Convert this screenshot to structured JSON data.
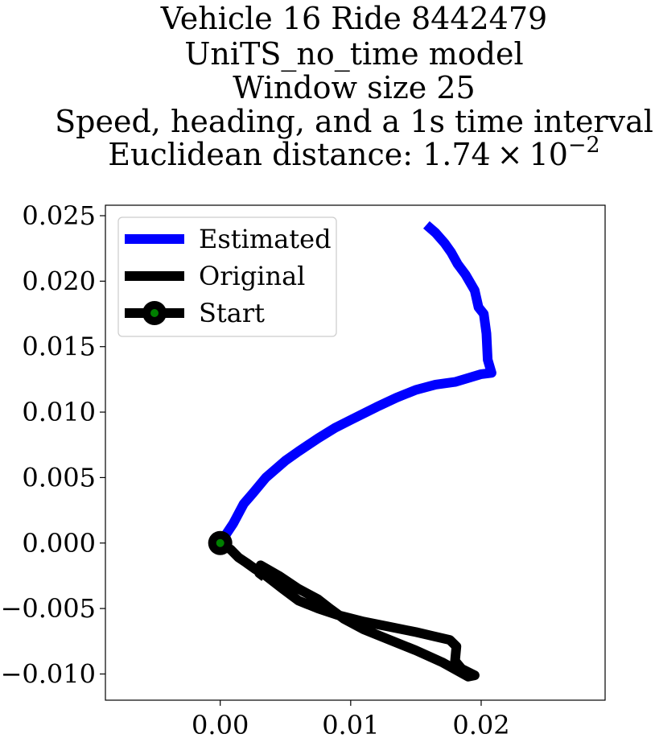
{
  "chart_data": {
    "type": "line",
    "title_lines": [
      "Vehicle 16 Ride 8442479",
      "UniTS_no_time model",
      "Window size 25",
      "Speed, heading, and a 1s time interval"
    ],
    "title_distance_prefix": "Euclidean distance: 1.74",
    "title_distance_times": "×",
    "title_distance_base": "10",
    "title_distance_exp": "−2",
    "xlim": [
      -0.0088,
      0.0295
    ],
    "ylim": [
      -0.012,
      0.0258
    ],
    "x_ticks": [
      0.0,
      0.01,
      0.02
    ],
    "x_tick_labels": [
      "0.00",
      "0.01",
      "0.02"
    ],
    "y_ticks": [
      0.025,
      0.02,
      0.015,
      0.01,
      0.005,
      0.0,
      -0.005,
      -0.01
    ],
    "y_tick_labels": [
      "0.025",
      "0.020",
      "0.015",
      "0.010",
      "0.005",
      "0.000",
      "−0.005",
      "−0.010"
    ],
    "grid": false,
    "legend_position": "top-left",
    "series": [
      {
        "name": "Estimated",
        "color": "#0000ff",
        "points": [
          [
            0.0,
            0.0
          ],
          [
            0.001,
            0.0015
          ],
          [
            0.0018,
            0.003
          ],
          [
            0.0025,
            0.0038
          ],
          [
            0.0035,
            0.005
          ],
          [
            0.005,
            0.0063
          ],
          [
            0.006,
            0.007
          ],
          [
            0.0075,
            0.008
          ],
          [
            0.0088,
            0.0088
          ],
          [
            0.01,
            0.0094
          ],
          [
            0.012,
            0.0104
          ],
          [
            0.0135,
            0.0111
          ],
          [
            0.015,
            0.0117
          ],
          [
            0.0165,
            0.0121
          ],
          [
            0.018,
            0.0123
          ],
          [
            0.019,
            0.0126
          ],
          [
            0.02,
            0.0129
          ],
          [
            0.0208,
            0.013
          ],
          [
            0.0205,
            0.014
          ],
          [
            0.0204,
            0.016
          ],
          [
            0.0202,
            0.0175
          ],
          [
            0.0198,
            0.018
          ],
          [
            0.0195,
            0.0193
          ],
          [
            0.0188,
            0.0205
          ],
          [
            0.0182,
            0.0213
          ],
          [
            0.0177,
            0.0222
          ],
          [
            0.0172,
            0.0229
          ],
          [
            0.0165,
            0.0237
          ],
          [
            0.0158,
            0.0243
          ]
        ]
      },
      {
        "name": "Original",
        "color": "#000000",
        "points": [
          [
            0.0,
            0.0
          ],
          [
            0.0008,
            -0.0005
          ],
          [
            0.0014,
            -0.0011
          ],
          [
            0.002,
            -0.0015
          ],
          [
            0.0027,
            -0.002
          ],
          [
            0.0035,
            -0.0025
          ],
          [
            0.0048,
            -0.0035
          ],
          [
            0.006,
            -0.0044
          ],
          [
            0.0075,
            -0.005
          ],
          [
            0.009,
            -0.0055
          ],
          [
            0.011,
            -0.006
          ],
          [
            0.013,
            -0.0064
          ],
          [
            0.015,
            -0.0068
          ],
          [
            0.0163,
            -0.0071
          ],
          [
            0.0176,
            -0.0074
          ],
          [
            0.0181,
            -0.0079
          ],
          [
            0.018,
            -0.009
          ],
          [
            0.0185,
            -0.0096
          ],
          [
            0.0195,
            -0.0101
          ],
          [
            0.019,
            -0.0102
          ],
          [
            0.017,
            -0.0091
          ],
          [
            0.015,
            -0.0082
          ],
          [
            0.013,
            -0.0074
          ],
          [
            0.011,
            -0.0066
          ],
          [
            0.0095,
            -0.0058
          ],
          [
            0.0084,
            -0.005
          ],
          [
            0.0075,
            -0.0043
          ],
          [
            0.006,
            -0.0035
          ],
          [
            0.0045,
            -0.0025
          ],
          [
            0.0031,
            -0.0017
          ],
          [
            0.003,
            -0.0023
          ],
          [
            0.0034,
            -0.0026
          ]
        ]
      }
    ],
    "start": {
      "name": "Start",
      "x": 0.0,
      "y": 0.0,
      "line_color": "#000000",
      "marker_edge": "#000000",
      "marker_face": "#008000"
    }
  }
}
